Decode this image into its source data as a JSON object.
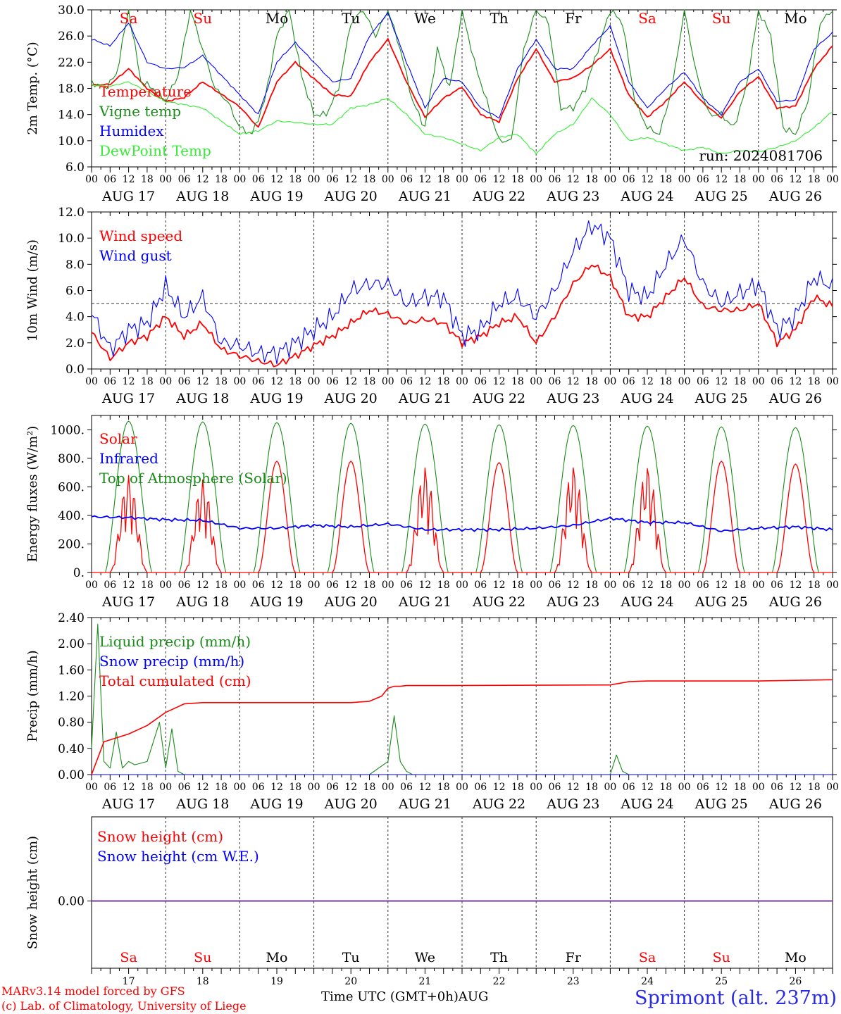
{
  "colors": {
    "red": "#ff0000",
    "green": "#1a8c1a",
    "lightgreen": "#33ee33",
    "blue": "#0000ff",
    "grid": "#555555",
    "purple": "#7a3aa0",
    "site": "#2a2ae6"
  },
  "days": [
    "Sa",
    "Su",
    "Mo",
    "Tu",
    "We",
    "Th",
    "Fr",
    "Sa",
    "Su",
    "Mo"
  ],
  "weekend": [
    true,
    true,
    false,
    false,
    false,
    false,
    false,
    true,
    true,
    false
  ],
  "day_numbers": [
    "17",
    "18",
    "19",
    "20",
    "21",
    "22",
    "23",
    "24",
    "25",
    "26"
  ],
  "date_labels": [
    "AUG 17",
    "AUG 18",
    "AUG 19",
    "AUG 20",
    "AUG 21",
    "AUG 22",
    "AUG 23",
    "AUG 24",
    "AUG 25",
    "AUG 26"
  ],
  "hour_ticks": [
    "00",
    "06",
    "12",
    "18"
  ],
  "hour_end": "00",
  "run_label": "run: 2024081706",
  "footer": {
    "model": "MARv3.14 model forced by GFS",
    "credit": "(c) Lab. of Climatology, University of Liege",
    "time_axis": "Time UTC (GMT+0h)",
    "month": "AUG",
    "site": "Sprimont (alt. 237m)"
  },
  "chart_data": [
    {
      "type": "line",
      "ylabel": "2m Temp. (°C)",
      "ylim": [
        6.0,
        30.0
      ],
      "yticks": [
        "6.0",
        "10.0",
        "14.0",
        "18.0",
        "22.0",
        "26.0",
        "30.0"
      ],
      "x_unit": "hours since AUG 17 00 UTC",
      "series": [
        {
          "name": "Temperature",
          "color": "red",
          "x": [
            0,
            6,
            12,
            18,
            24,
            30,
            36,
            48,
            54,
            60,
            66,
            72,
            78,
            84,
            90,
            96,
            102,
            108,
            114,
            120,
            126,
            132,
            138,
            144,
            150,
            156,
            162,
            168,
            174,
            180,
            186,
            192,
            198,
            204,
            210,
            216,
            222,
            228,
            234,
            240
          ],
          "values": [
            18.5,
            18.6,
            21.0,
            18.0,
            16.0,
            16.6,
            19.0,
            15.2,
            12.0,
            19.0,
            22.0,
            19.5,
            17.0,
            16.8,
            22.0,
            25.5,
            19.0,
            13.6,
            16.5,
            18.2,
            14.0,
            12.9,
            19.5,
            24.0,
            19.0,
            19.6,
            21.5,
            24.0,
            17.0,
            13.6,
            16.0,
            19.0,
            15.8,
            13.5,
            17.5,
            19.8,
            15.0,
            15.3,
            21.0,
            24.5
          ]
        },
        {
          "name": "Vigne temp",
          "color": "green",
          "x": [
            0,
            4,
            8,
            12,
            16,
            20,
            24,
            28,
            32,
            36,
            40,
            44,
            48,
            52,
            56,
            60,
            64,
            68,
            72,
            76,
            80,
            84,
            88,
            92,
            96,
            100,
            104,
            108,
            112,
            116,
            120,
            124,
            128,
            132,
            136,
            140,
            144,
            148,
            152,
            156,
            160,
            164,
            168,
            172,
            176,
            180,
            184,
            188,
            192,
            196,
            200,
            204,
            208,
            212,
            216,
            220,
            224,
            228,
            232,
            236,
            240
          ],
          "values": [
            19,
            18,
            20,
            30,
            19,
            18,
            16,
            20,
            30,
            24,
            18,
            16,
            12,
            11,
            16,
            26,
            30,
            20,
            14,
            14,
            18,
            28,
            30,
            26,
            30,
            24,
            16,
            12,
            24,
            18,
            30,
            22,
            16,
            10,
            10,
            24,
            30,
            28,
            15,
            15,
            18,
            24,
            30,
            28,
            16,
            12,
            11,
            18,
            30,
            20,
            14,
            14,
            12,
            18,
            30,
            26,
            12,
            11,
            16,
            28,
            30
          ]
        },
        {
          "name": "Humidex",
          "color": "blue",
          "x": [
            0,
            6,
            12,
            18,
            24,
            30,
            36,
            48,
            54,
            60,
            66,
            72,
            78,
            84,
            90,
            96,
            102,
            108,
            114,
            120,
            126,
            132,
            138,
            144,
            150,
            156,
            162,
            168,
            174,
            180,
            186,
            192,
            198,
            204,
            210,
            216,
            222,
            228,
            234,
            240
          ],
          "values": [
            25.5,
            24.5,
            28.0,
            22.0,
            21.0,
            21.2,
            23.0,
            17.0,
            14.0,
            22.0,
            25.0,
            22.0,
            19.0,
            19.5,
            26.0,
            29.5,
            22.0,
            15.0,
            19.5,
            19.0,
            15.0,
            13.5,
            21.0,
            25.5,
            21.0,
            21.0,
            24.5,
            27.5,
            19.0,
            15.0,
            18.0,
            20.5,
            16.5,
            14.0,
            19.0,
            21.0,
            16.0,
            16.2,
            24.0,
            26.5
          ]
        },
        {
          "name": "DewPoint Temp",
          "color": "lightgreen",
          "x": [
            0,
            6,
            12,
            18,
            24,
            30,
            36,
            42,
            48,
            54,
            60,
            66,
            72,
            78,
            84,
            90,
            96,
            102,
            108,
            114,
            120,
            126,
            132,
            138,
            144,
            150,
            156,
            162,
            168,
            174,
            180,
            186,
            192,
            198,
            204,
            210,
            216,
            222,
            228,
            234,
            240
          ],
          "values": [
            18.5,
            18.3,
            19.0,
            17.5,
            16.0,
            15.5,
            15.0,
            13.0,
            11.0,
            11.5,
            13.0,
            12.8,
            12.5,
            12.5,
            15.0,
            15.5,
            16.5,
            14.0,
            11.0,
            10.5,
            9.5,
            8.5,
            10.5,
            11.0,
            8.0,
            11.0,
            12.5,
            16.5,
            14.0,
            10.0,
            10.5,
            9.5,
            8.5,
            9.0,
            8.0,
            8.5,
            8.3,
            9.0,
            10.0,
            12.0,
            14.5
          ]
        }
      ]
    },
    {
      "type": "line",
      "ylabel": "10m Wind (m/s)",
      "ylim": [
        0.0,
        12.0
      ],
      "yticks": [
        "0.0",
        "2.0",
        "4.0",
        "6.0",
        "8.0",
        "10.0",
        "12.0"
      ],
      "reference_line": 5.0,
      "series": [
        {
          "name": "Wind speed",
          "color": "red",
          "x": [
            0,
            6,
            12,
            18,
            24,
            30,
            36,
            42,
            48,
            54,
            60,
            66,
            72,
            78,
            84,
            90,
            96,
            102,
            108,
            114,
            120,
            126,
            132,
            138,
            144,
            150,
            156,
            162,
            168,
            174,
            180,
            186,
            192,
            198,
            204,
            210,
            216,
            222,
            228,
            234,
            240
          ],
          "values": [
            2.8,
            0.8,
            2.0,
            2.5,
            4.0,
            2.5,
            3.5,
            1.5,
            1.0,
            0.6,
            0.3,
            1.0,
            1.8,
            2.5,
            3.5,
            4.5,
            4.2,
            3.5,
            3.8,
            3.5,
            2.0,
            2.5,
            3.5,
            4.0,
            2.0,
            4.0,
            6.5,
            8.0,
            7.0,
            4.0,
            4.0,
            5.5,
            7.0,
            4.8,
            4.5,
            4.5,
            5.0,
            2.0,
            3.0,
            5.5,
            4.8
          ]
        },
        {
          "name": "Wind gust",
          "color": "blue",
          "x": [
            0,
            6,
            12,
            18,
            24,
            30,
            36,
            42,
            48,
            54,
            60,
            66,
            72,
            78,
            84,
            90,
            96,
            102,
            108,
            114,
            120,
            126,
            132,
            138,
            144,
            150,
            156,
            162,
            168,
            174,
            180,
            186,
            192,
            198,
            204,
            210,
            216,
            222,
            228,
            234,
            240
          ],
          "values": [
            4.3,
            1.5,
            3.0,
            3.5,
            6.3,
            4.0,
            5.5,
            2.0,
            1.8,
            1.2,
            1.2,
            2.0,
            3.0,
            4.0,
            6.0,
            6.5,
            6.5,
            5.0,
            5.5,
            5.5,
            2.5,
            3.0,
            5.0,
            5.5,
            4.0,
            6.0,
            9.0,
            11.0,
            10.0,
            6.0,
            5.5,
            8.0,
            10.0,
            6.5,
            5.0,
            5.8,
            6.5,
            3.0,
            4.0,
            7.0,
            6.3
          ]
        }
      ]
    },
    {
      "type": "line",
      "ylabel": "Energy fluxes (W/m²)",
      "ylim": [
        0,
        1100
      ],
      "yticks": [
        "0.",
        "200.",
        "400.",
        "600.",
        "800.",
        "1000."
      ],
      "series": [
        {
          "name": "Solar",
          "color": "red",
          "peaks": [
            680,
            650,
            780,
            780,
            740,
            770,
            750,
            750,
            780,
            760
          ]
        },
        {
          "name": "Infrared",
          "color": "blue",
          "x": [
            0,
            12,
            24,
            36,
            48,
            60,
            72,
            84,
            96,
            108,
            120,
            132,
            144,
            156,
            168,
            180,
            192,
            204,
            216,
            228,
            240
          ],
          "values": [
            390,
            385,
            370,
            365,
            310,
            310,
            330,
            320,
            340,
            300,
            300,
            300,
            310,
            330,
            380,
            350,
            350,
            290,
            310,
            320,
            300
          ]
        },
        {
          "name": "Top of Atmosphere (Solar)",
          "color": "green",
          "peaks": [
            1060,
            1055,
            1050,
            1045,
            1040,
            1035,
            1030,
            1025,
            1020,
            1015
          ]
        }
      ]
    },
    {
      "type": "line",
      "ylabel": "Precip (mm/h)",
      "ylim": [
        0.0,
        2.4
      ],
      "yticks": [
        "0.00",
        "0.40",
        "0.80",
        "1.20",
        "1.60",
        "2.00",
        "2.40"
      ],
      "series": [
        {
          "name": "Liquid precip (mm/h)",
          "color": "green",
          "x": [
            0,
            2,
            4,
            6,
            8,
            10,
            12,
            14,
            18,
            22,
            24,
            26,
            28,
            30,
            36,
            90,
            96,
            98,
            100,
            102,
            104,
            108,
            168,
            170,
            172,
            174,
            240
          ],
          "values": [
            0.4,
            2.3,
            0.2,
            0.1,
            0.65,
            0.1,
            0.2,
            0.15,
            0.2,
            0.8,
            0.1,
            0.7,
            0.05,
            0.0,
            0.0,
            0.0,
            0.2,
            0.9,
            0.2,
            0.05,
            0.0,
            0.0,
            0.0,
            0.3,
            0.05,
            0.0,
            0.0
          ]
        },
        {
          "name": "Snow precip (mm/h)",
          "color": "blue",
          "x": [
            0,
            240
          ],
          "values": [
            0,
            0
          ]
        },
        {
          "name": "Total cumulated (cm)",
          "color": "red",
          "x": [
            0,
            4,
            12,
            18,
            24,
            30,
            36,
            48,
            84,
            90,
            94,
            96,
            98,
            100,
            102,
            110,
            168,
            174,
            180,
            216,
            240
          ],
          "values": [
            0.0,
            0.5,
            0.62,
            0.75,
            0.95,
            1.08,
            1.1,
            1.1,
            1.1,
            1.12,
            1.2,
            1.32,
            1.35,
            1.35,
            1.36,
            1.36,
            1.37,
            1.42,
            1.43,
            1.43,
            1.45
          ]
        }
      ]
    },
    {
      "type": "line",
      "ylabel": "Snow height (cm)",
      "yticks": [
        "0.00"
      ],
      "series": [
        {
          "name": "Snow height (cm)",
          "color": "red",
          "x": [
            0,
            240
          ],
          "values": [
            0,
            0
          ]
        },
        {
          "name": "Snow height (cm W.E.)",
          "color": "blue",
          "x": [
            0,
            240
          ],
          "values": [
            0,
            0
          ]
        }
      ]
    }
  ]
}
